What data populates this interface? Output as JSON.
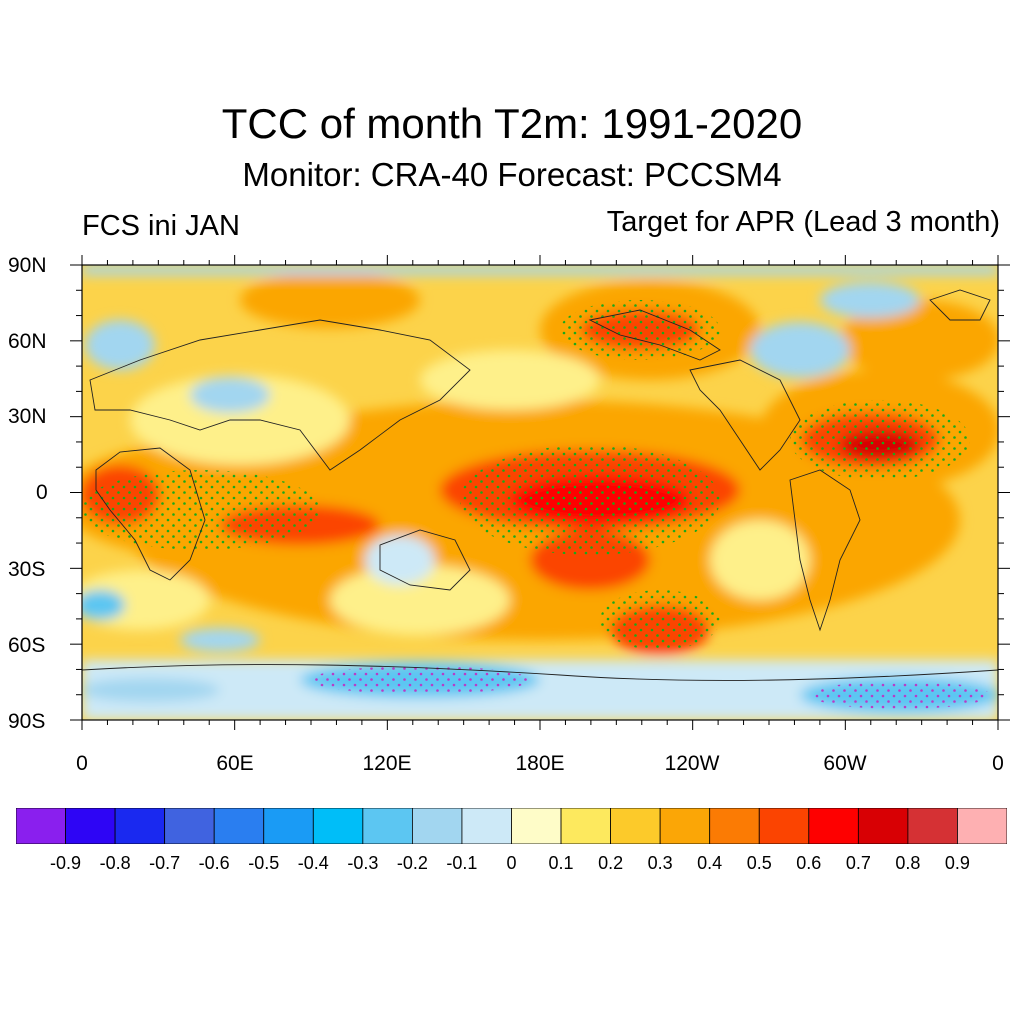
{
  "title": "TCC of month T2m: 1991-2020",
  "subtitle": "Monitor: CRA-40   Forecast: PCCSM4",
  "left_label": "FCS ini JAN",
  "right_label": "Target for APR (Lead 3 month)",
  "lat_labels": [
    "90N",
    "60N",
    "30N",
    "0",
    "30S",
    "60S",
    "90S"
  ],
  "lon_labels": [
    "0",
    "60E",
    "120E",
    "180E",
    "120W",
    "60W",
    "0"
  ],
  "colorbar": {
    "colors": [
      "#8a1fee",
      "#2e05f5",
      "#1a29f0",
      "#4063e0",
      "#2a7ef0",
      "#1a9bf5",
      "#00bef8",
      "#5cc6f2",
      "#a2d6f0",
      "#cde9f7",
      "#fefcc8",
      "#fde95e",
      "#fcca2a",
      "#fba606",
      "#fb7b04",
      "#fb4401",
      "#fe0000",
      "#d80004",
      "#d53134",
      "#feb0b2"
    ],
    "labels": [
      "-0.9",
      "-0.8",
      "-0.7",
      "-0.6",
      "-0.5",
      "-0.4",
      "-0.3",
      "-0.2",
      "-0.1",
      "0",
      "0.1",
      "0.2",
      "0.3",
      "0.4",
      "0.5",
      "0.6",
      "0.7",
      "0.8",
      "0.9"
    ]
  }
}
